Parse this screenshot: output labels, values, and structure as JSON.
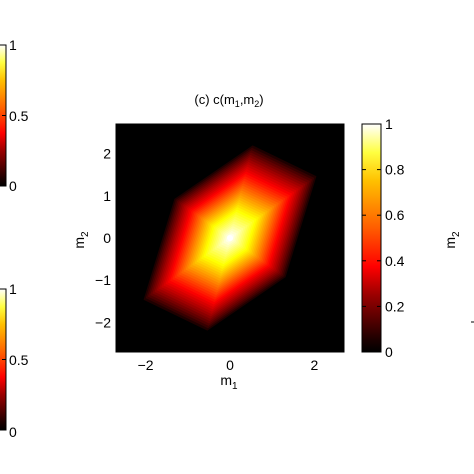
{
  "chart_data": [
    {
      "type": "colorbar",
      "panel": "left-top (partially visible)",
      "ticks": [
        "1",
        "0.5",
        "0"
      ],
      "tick_values": [
        1,
        0.5,
        0
      ],
      "clim": [
        0,
        1
      ],
      "colormap": "hot"
    },
    {
      "type": "colorbar",
      "panel": "left-bottom (partially visible)",
      "ticks": [
        "1",
        "0.5",
        "0"
      ],
      "tick_values": [
        1,
        0.5,
        0
      ],
      "clim": [
        0,
        1
      ],
      "colormap": "hot"
    },
    {
      "type": "heatmap",
      "panel": "center",
      "title": "(c) c(m",
      "title_sub1": "1",
      "title_mid": ",m",
      "title_sub2": "2",
      "title_end": ")",
      "xlabel": "m",
      "xlabel_sub": "1",
      "ylabel": "m",
      "ylabel_sub": "2",
      "xlim": [
        -2.7,
        2.7
      ],
      "ylim": [
        -2.7,
        2.7
      ],
      "xticks": [
        -2,
        0,
        2
      ],
      "xtick_labels": [
        "−2",
        "0",
        "2"
      ],
      "yticks": [
        2,
        1,
        0,
        -1,
        -2
      ],
      "ytick_labels": [
        "2",
        "1",
        "0",
        "−1",
        "−2"
      ],
      "colormap": "hot",
      "clim": [
        0,
        1
      ],
      "peak": {
        "m1": 0,
        "m2": 0,
        "value": 1
      },
      "correlation_direction": "positive diagonal",
      "grid": false,
      "colorbar": {
        "ticks": [
          "1",
          "0.8",
          "0.6",
          "0.4",
          "0.2",
          "0"
        ],
        "tick_values": [
          1,
          0.8,
          0.6,
          0.4,
          0.2,
          0
        ]
      }
    },
    {
      "type": "axis-fragment",
      "panel": "right (partially visible)",
      "ylabel": "m",
      "ylabel_sub": "2"
    }
  ]
}
